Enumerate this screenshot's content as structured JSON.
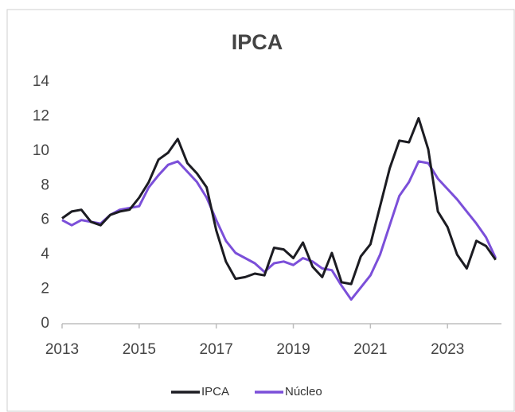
{
  "chart_data": {
    "type": "line",
    "title": "IPCA",
    "x": [
      2013.0,
      2013.25,
      2013.5,
      2013.75,
      2014.0,
      2014.25,
      2014.5,
      2014.75,
      2015.0,
      2015.25,
      2015.5,
      2015.75,
      2016.0,
      2016.25,
      2016.5,
      2016.75,
      2017.0,
      2017.25,
      2017.5,
      2017.75,
      2018.0,
      2018.25,
      2018.5,
      2018.75,
      2019.0,
      2019.25,
      2019.5,
      2019.75,
      2020.0,
      2020.25,
      2020.5,
      2020.75,
      2021.0,
      2021.25,
      2021.5,
      2021.75,
      2022.0,
      2022.25,
      2022.5,
      2022.75,
      2023.0,
      2023.25,
      2023.5,
      2023.75,
      2024.0,
      2024.25
    ],
    "series": [
      {
        "name": "IPCA",
        "color": "#1c1c22",
        "values": [
          6.1,
          6.5,
          6.6,
          5.9,
          5.7,
          6.3,
          6.5,
          6.6,
          7.3,
          8.2,
          9.5,
          9.9,
          10.7,
          9.3,
          8.7,
          7.9,
          5.4,
          3.6,
          2.6,
          2.7,
          2.9,
          2.8,
          4.4,
          4.3,
          3.8,
          4.7,
          3.3,
          2.7,
          4.1,
          2.4,
          2.3,
          3.9,
          4.6,
          6.8,
          9.0,
          10.6,
          10.5,
          11.9,
          10.1,
          6.5,
          5.6,
          4.0,
          3.2,
          4.8,
          4.5,
          3.7
        ]
      },
      {
        "name": "Núcleo",
        "color": "#7b4fd9",
        "values": [
          6.0,
          5.7,
          6.0,
          5.9,
          5.8,
          6.3,
          6.6,
          6.7,
          6.8,
          7.9,
          8.6,
          9.2,
          9.4,
          8.8,
          8.2,
          7.3,
          6.0,
          4.8,
          4.1,
          3.8,
          3.5,
          3.0,
          3.5,
          3.6,
          3.4,
          3.8,
          3.6,
          3.2,
          3.1,
          2.2,
          1.4,
          2.1,
          2.8,
          4.0,
          5.7,
          7.4,
          8.2,
          9.4,
          9.3,
          8.4,
          7.8,
          7.2,
          6.5,
          5.8,
          5.0,
          3.8
        ]
      }
    ],
    "xlim": [
      2013,
      2024.4
    ],
    "xticks": [
      2013,
      2015,
      2017,
      2019,
      2021,
      2023
    ],
    "ylim": [
      0,
      14
    ],
    "yticks": [
      0,
      2,
      4,
      6,
      8,
      10,
      12,
      14
    ],
    "grid": false
  }
}
